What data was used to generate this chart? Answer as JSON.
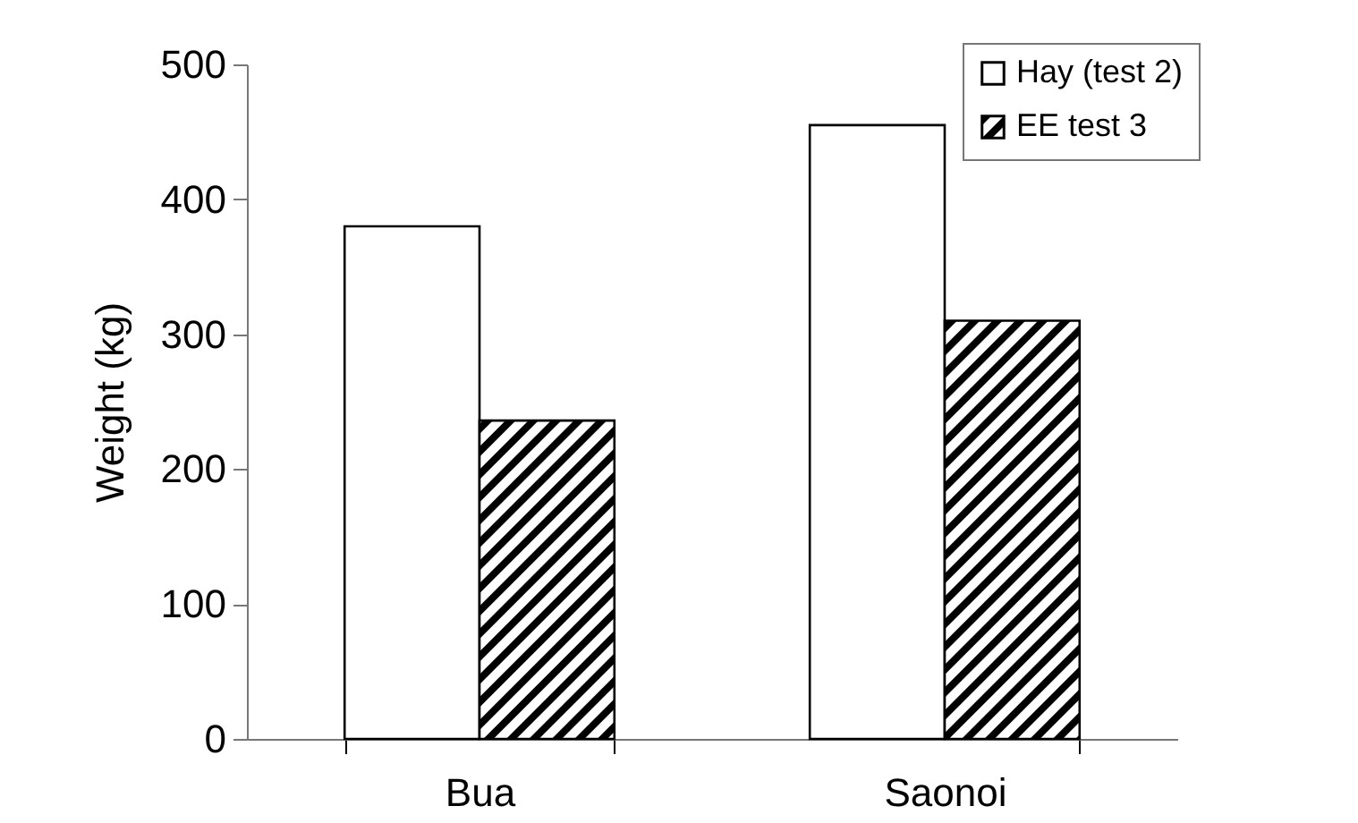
{
  "chart_data": {
    "type": "bar",
    "ylabel": "Weight (kg)",
    "categories": [
      "Bua",
      "Saonoi"
    ],
    "series": [
      {
        "name": "Hay (test 2)",
        "color": "#ffffff",
        "values": [
          380,
          455
        ]
      },
      {
        "name": "EE test 3",
        "color": "#000000",
        "values": [
          236,
          310
        ]
      }
    ],
    "ylim": [
      0,
      500
    ],
    "yticks": [
      0,
      100,
      200,
      300,
      400,
      500
    ],
    "grid": false,
    "legend": "top right"
  }
}
